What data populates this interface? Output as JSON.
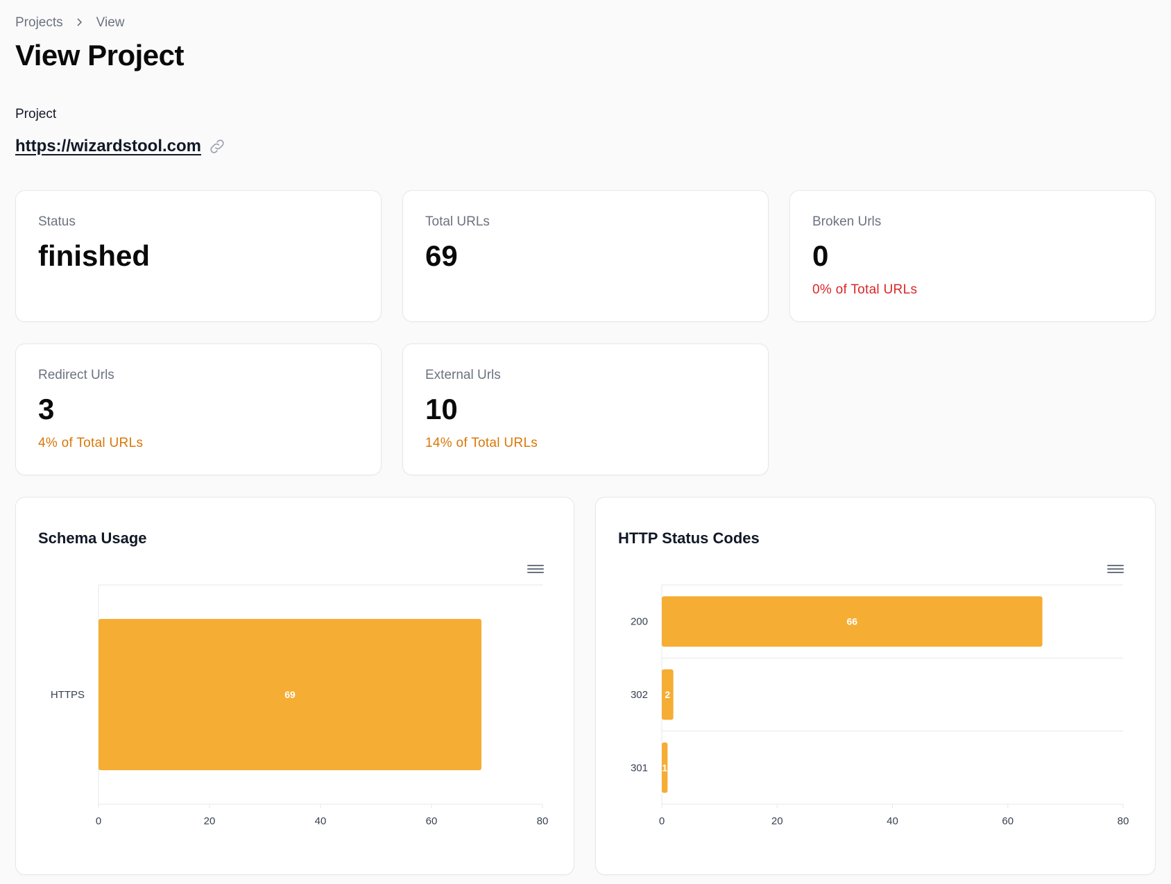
{
  "breadcrumb": {
    "items": [
      "Projects",
      "View"
    ]
  },
  "page": {
    "title": "View Project"
  },
  "project": {
    "label": "Project",
    "url": "https://wizardstool.com"
  },
  "stats": {
    "status": {
      "label": "Status",
      "value": "finished"
    },
    "total_urls": {
      "label": "Total URLs",
      "value": "69"
    },
    "broken_urls": {
      "label": "Broken Urls",
      "value": "0",
      "desc": "0% of Total URLs",
      "desc_color": "#dc2626"
    },
    "redirect_urls": {
      "label": "Redirect Urls",
      "value": "3",
      "desc": "4% of Total URLs",
      "desc_color": "#d97706"
    },
    "external_urls": {
      "label": "External Urls",
      "value": "10",
      "desc": "14% of Total URLs",
      "desc_color": "#d97706"
    }
  },
  "icons": {
    "link": "link-icon",
    "menu": "hamburger-menu-icon",
    "breadcrumb_separator": "chevron-right-icon"
  },
  "colors": {
    "bar": "#f6ad33"
  },
  "chart_data": [
    {
      "type": "bar",
      "orientation": "horizontal",
      "title": "Schema Usage",
      "categories": [
        "HTTPS"
      ],
      "values": [
        69
      ],
      "xlim": [
        0,
        80
      ],
      "xticks": [
        0,
        20,
        40,
        60,
        80
      ],
      "data_labels": true
    },
    {
      "type": "bar",
      "orientation": "horizontal",
      "title": "HTTP Status Codes",
      "categories": [
        "200",
        "302",
        "301"
      ],
      "values": [
        66,
        2,
        1
      ],
      "xlim": [
        0,
        80
      ],
      "xticks": [
        0,
        20,
        40,
        60,
        80
      ],
      "data_labels": true
    }
  ]
}
